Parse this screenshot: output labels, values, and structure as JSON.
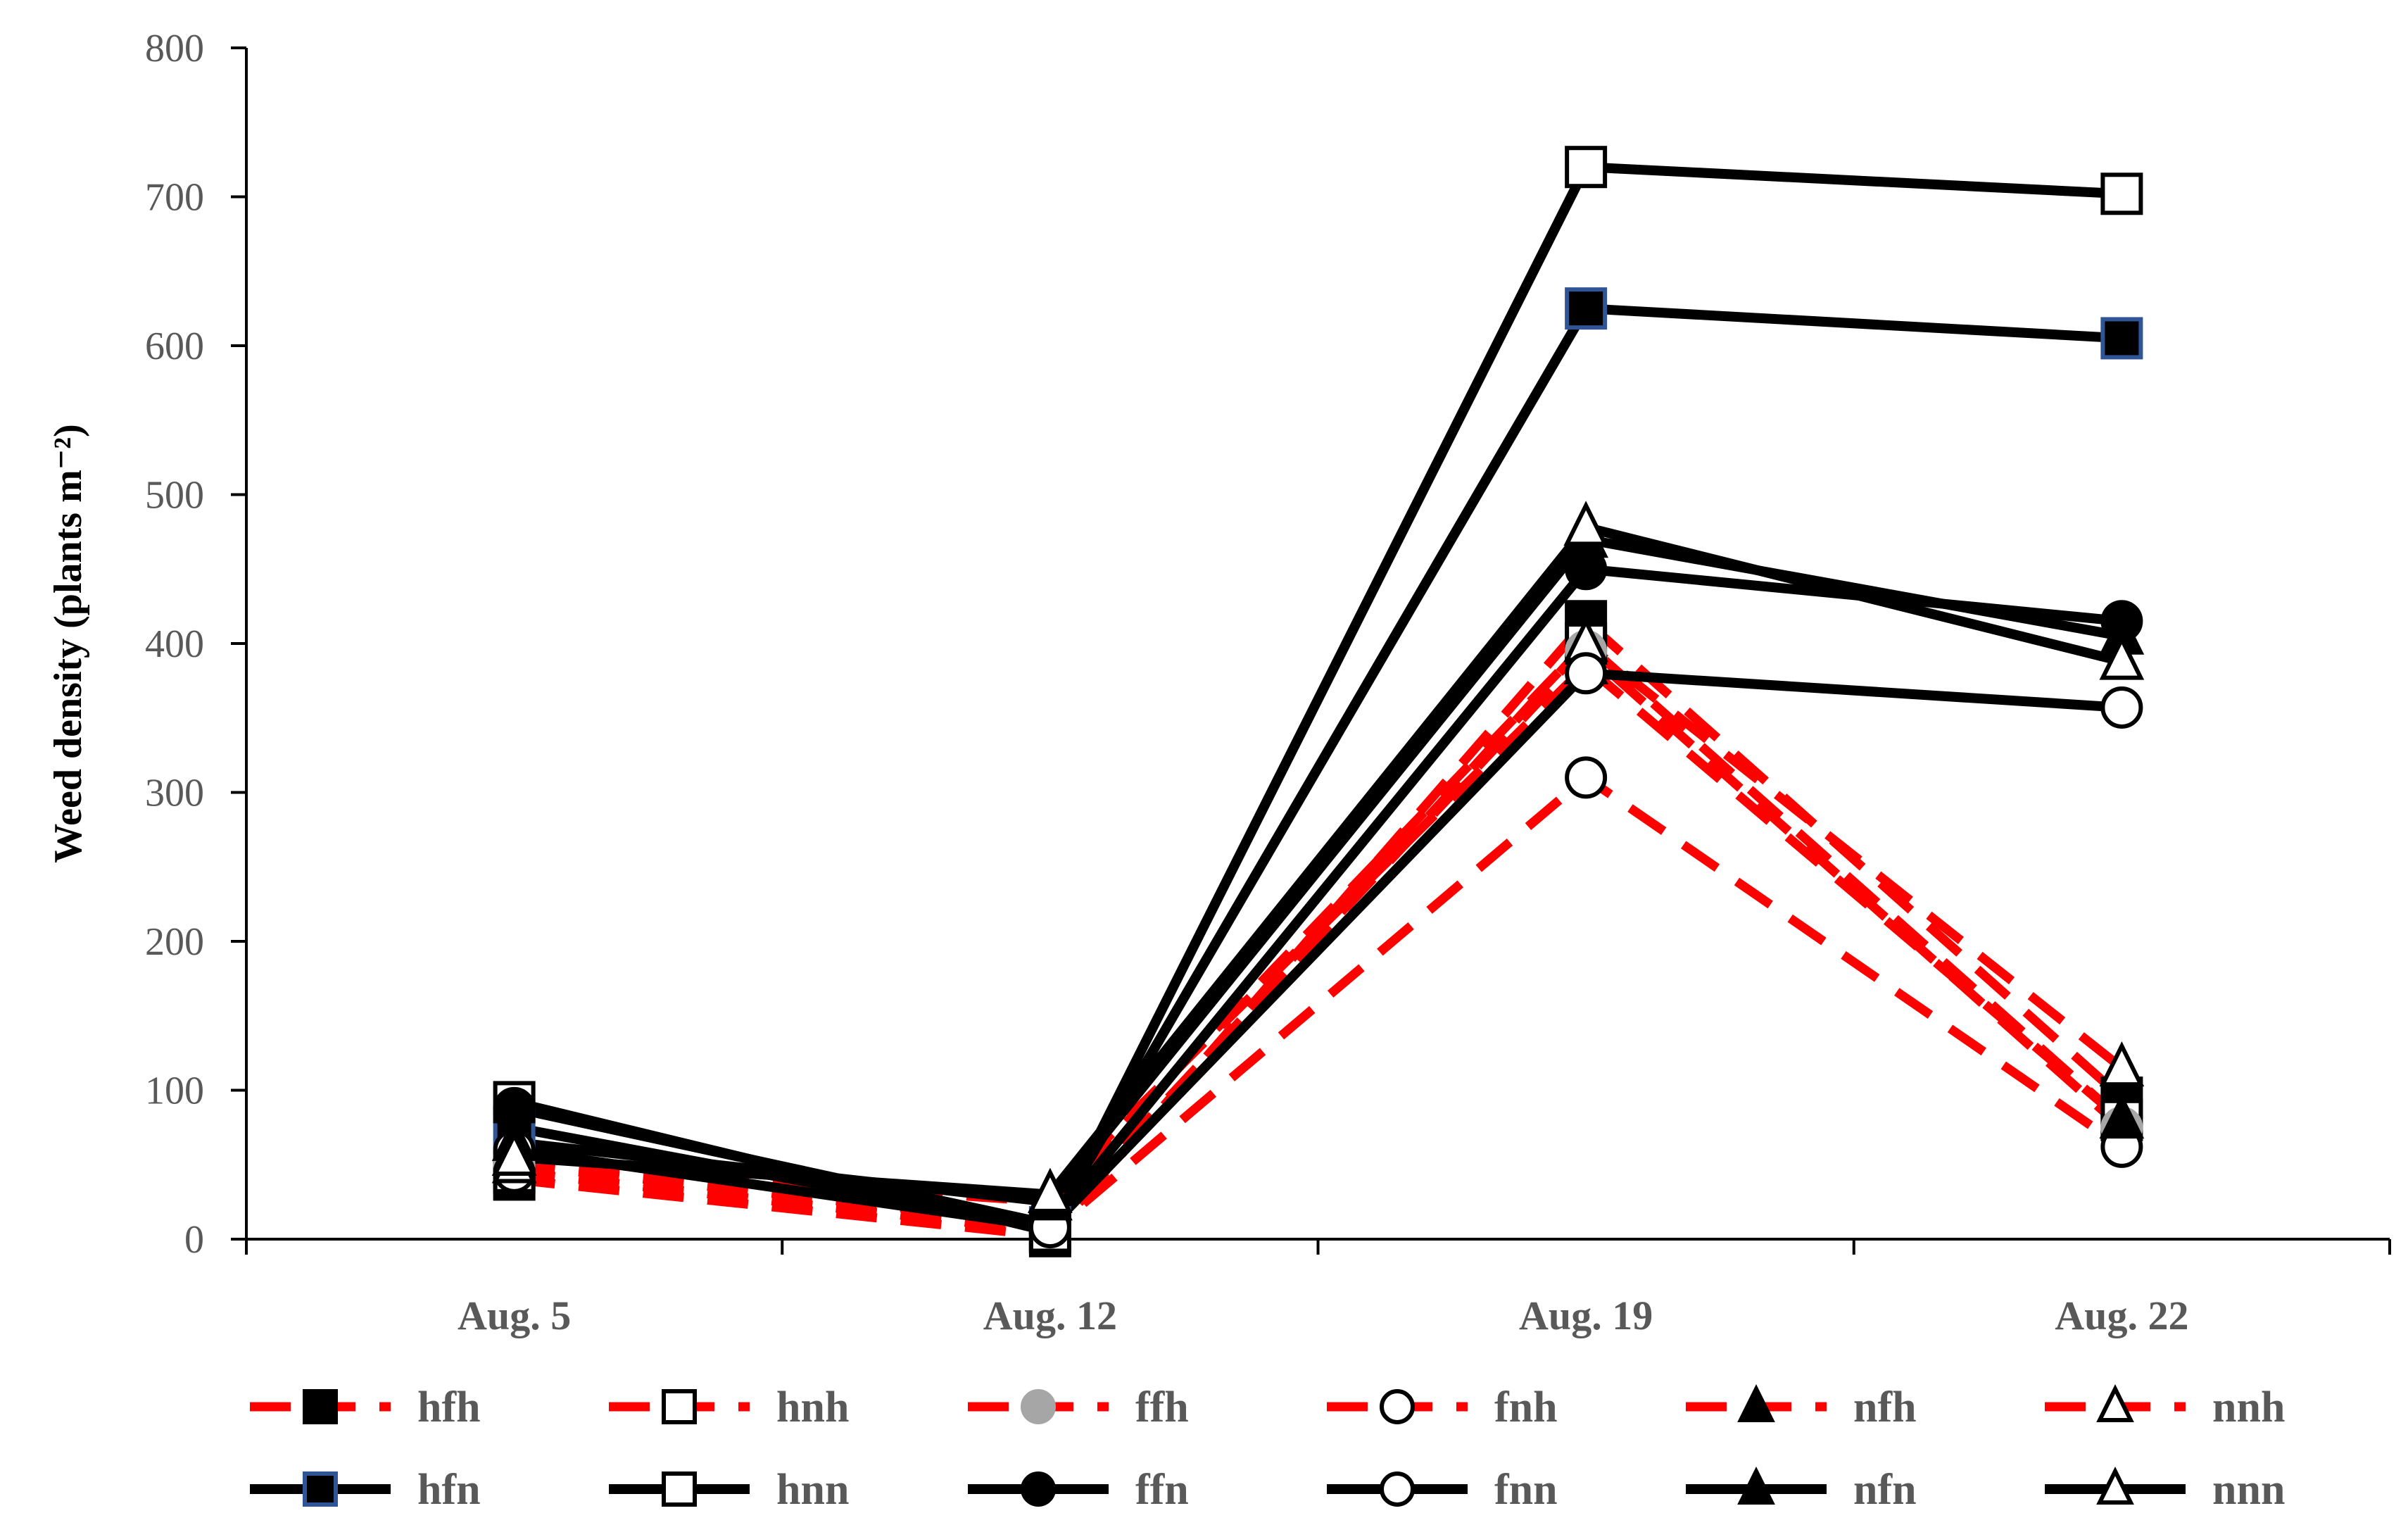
{
  "chart_data": {
    "type": "line",
    "title": "",
    "xlabel": "",
    "ylabel": "Weed density (plants m⁻²)",
    "ylim": [
      0,
      800
    ],
    "yticks": [
      0,
      100,
      200,
      300,
      400,
      500,
      600,
      700,
      800
    ],
    "categories": [
      "Aug. 5",
      "Aug. 12",
      "Aug. 19",
      "Aug. 22"
    ],
    "grid": false,
    "legend_position": "bottom",
    "series": [
      {
        "name": "hfh",
        "line_color": "#ff0000",
        "dashed": true,
        "marker": "square",
        "marker_fill": "#000000",
        "marker_stroke": "#000000",
        "values": [
          40,
          2,
          415,
          95
        ]
      },
      {
        "name": "hnh",
        "line_color": "#ff0000",
        "dashed": true,
        "marker": "square",
        "marker_fill": "#ffffff",
        "marker_stroke": "#000000",
        "values": [
          45,
          5,
          400,
          80
        ]
      },
      {
        "name": "ffh",
        "line_color": "#ff0000",
        "dashed": true,
        "marker": "circle",
        "marker_fill": "#a6a6a6",
        "marker_stroke": "#a6a6a6",
        "values": [
          50,
          10,
          395,
          75
        ]
      },
      {
        "name": "fnh",
        "line_color": "#ff0000",
        "dashed": true,
        "marker": "circle",
        "marker_fill": "#ffffff",
        "marker_stroke": "#000000",
        "values": [
          45,
          5,
          310,
          62
        ]
      },
      {
        "name": "nfh",
        "line_color": "#ff0000",
        "dashed": true,
        "marker": "triangle",
        "marker_fill": "#000000",
        "marker_stroke": "#000000",
        "values": [
          55,
          30,
          385,
          80
        ]
      },
      {
        "name": "nnh",
        "line_color": "#ff0000",
        "dashed": true,
        "marker": "triangle",
        "marker_fill": "#ffffff",
        "marker_stroke": "#000000",
        "values": [
          50,
          25,
          400,
          115
        ]
      },
      {
        "name": "hfn",
        "line_color": "#000000",
        "dashed": false,
        "marker": "square",
        "marker_fill": "#000000",
        "marker_stroke": "#2f5597",
        "values": [
          75,
          8,
          625,
          605
        ]
      },
      {
        "name": "hnn",
        "line_color": "#000000",
        "dashed": false,
        "marker": "square",
        "marker_fill": "#ffffff",
        "marker_stroke": "#000000",
        "values": [
          92,
          5,
          720,
          702
        ]
      },
      {
        "name": "ffn",
        "line_color": "#000000",
        "dashed": false,
        "marker": "circle",
        "marker_fill": "#000000",
        "marker_stroke": "#000000",
        "values": [
          88,
          10,
          450,
          415
        ]
      },
      {
        "name": "fnn",
        "line_color": "#000000",
        "dashed": false,
        "marker": "circle",
        "marker_fill": "#ffffff",
        "marker_stroke": "#000000",
        "values": [
          60,
          8,
          380,
          357
        ]
      },
      {
        "name": "nfn",
        "line_color": "#000000",
        "dashed": false,
        "marker": "triangle",
        "marker_fill": "#000000",
        "marker_stroke": "#000000",
        "values": [
          65,
          25,
          470,
          405
        ]
      },
      {
        "name": "nnn",
        "line_color": "#000000",
        "dashed": false,
        "marker": "triangle",
        "marker_fill": "#ffffff",
        "marker_stroke": "#000000",
        "values": [
          55,
          30,
          478,
          388
        ]
      }
    ]
  }
}
